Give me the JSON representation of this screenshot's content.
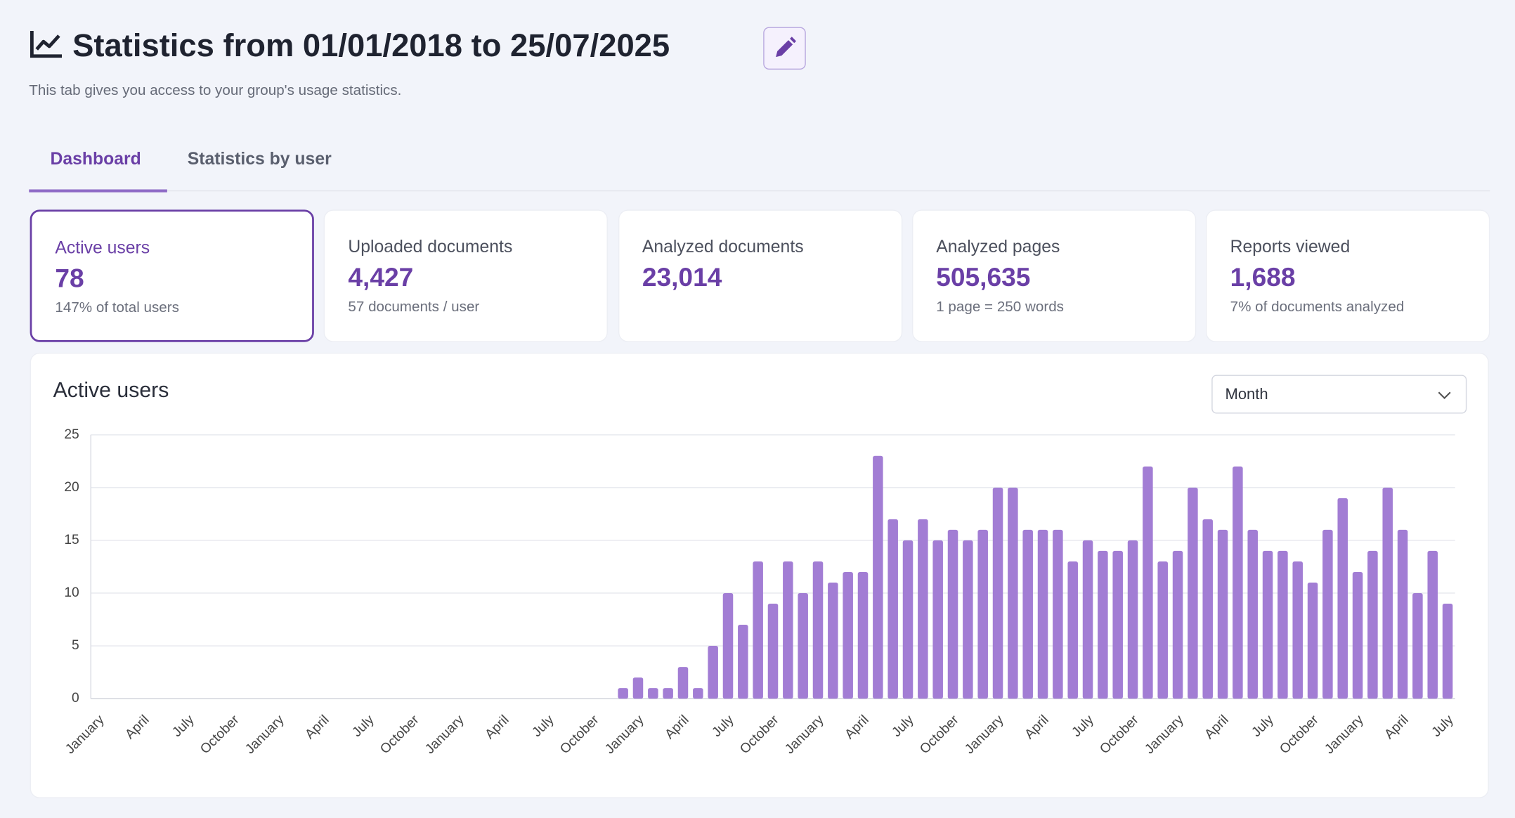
{
  "header": {
    "title": "Statistics from 01/01/2018 to 25/07/2025",
    "subtitle": "This tab gives you access to your group's usage statistics."
  },
  "tabs": [
    "Dashboard",
    "Statistics by user"
  ],
  "cards": [
    {
      "label": "Active users",
      "value": "78",
      "note": "147% of total users"
    },
    {
      "label": "Uploaded documents",
      "value": "4,427",
      "note": "57 documents / user"
    },
    {
      "label": "Analyzed documents",
      "value": "23,014"
    },
    {
      "label": "Analyzed pages",
      "value": "505,635",
      "note": "1 page = 250 words"
    },
    {
      "label": "Reports viewed",
      "value": "1,688",
      "note": "7% of documents analyzed"
    }
  ],
  "dropdown": "Month",
  "chart_data": {
    "type": "bar",
    "title": "Active users",
    "color": "#a27dd4",
    "grid": true,
    "ylim": [
      0,
      25
    ],
    "yticks": [
      0,
      5,
      10,
      15,
      20,
      25
    ],
    "categories": [
      "January",
      null,
      null,
      "April",
      null,
      null,
      "July",
      null,
      null,
      "October",
      null,
      null,
      "January",
      null,
      null,
      "April",
      null,
      null,
      "July",
      null,
      null,
      "October",
      null,
      null,
      "January",
      null,
      null,
      "April",
      null,
      null,
      "July",
      null,
      null,
      "October",
      null,
      null,
      "January",
      null,
      null,
      "April",
      null,
      null,
      "July",
      null,
      null,
      "October",
      null,
      null,
      "January",
      null,
      null,
      "April",
      null,
      null,
      "July",
      null,
      null,
      "October",
      null,
      null,
      "January",
      null,
      null,
      "April",
      null,
      null,
      "July",
      null,
      null,
      "October",
      null,
      null,
      "January",
      null,
      null,
      "April",
      null,
      null,
      "July",
      null,
      null,
      "October",
      null,
      null,
      "January",
      null,
      null,
      "April",
      null,
      null,
      "July"
    ],
    "values": [
      0,
      0,
      0,
      0,
      0,
      0,
      0,
      0,
      0,
      0,
      0,
      0,
      0,
      0,
      0,
      0,
      0,
      0,
      0,
      0,
      0,
      0,
      0,
      0,
      0,
      0,
      0,
      0,
      0,
      0,
      0,
      0,
      0,
      0,
      0,
      1,
      2,
      1,
      1,
      3,
      1,
      5,
      10,
      7,
      13,
      9,
      13,
      10,
      13,
      11,
      12,
      12,
      23,
      17,
      15,
      17,
      15,
      16,
      15,
      16,
      20,
      20,
      16,
      16,
      16,
      13,
      15,
      14,
      14,
      15,
      22,
      13,
      14,
      20,
      17,
      16,
      22,
      16,
      14,
      14,
      13,
      11,
      16,
      19,
      12,
      14,
      20,
      16,
      10,
      14,
      9
    ]
  }
}
